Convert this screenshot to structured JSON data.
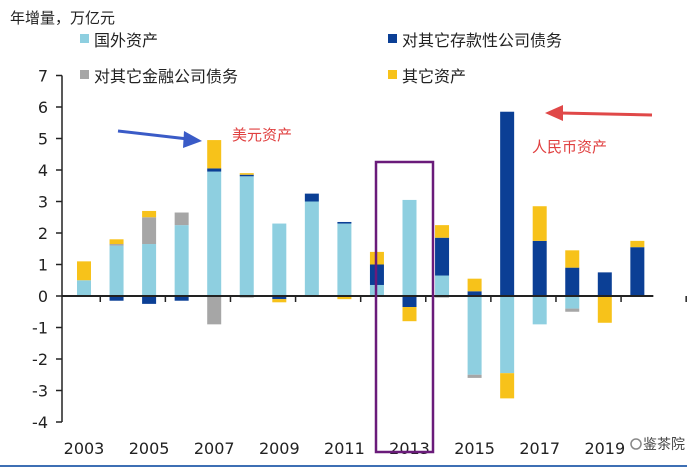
{
  "chart_data": {
    "type": "bar",
    "stacked": true,
    "ylabel": "年增量，万亿元",
    "ylim": [
      -4,
      7
    ],
    "yticks": [
      7,
      6,
      5,
      4,
      3,
      2,
      1,
      0,
      -1,
      -2,
      -3,
      -4
    ],
    "xtick_labels": [
      "2003",
      "2005",
      "2007",
      "2009",
      "2011",
      "2013",
      "2015",
      "2017",
      "2019"
    ],
    "categories": [
      "2003",
      "2004",
      "2005",
      "2006",
      "2007",
      "2008",
      "2009",
      "2010",
      "2011",
      "2012",
      "2013",
      "2014",
      "2015",
      "2016",
      "2017",
      "2018",
      "2019",
      "2020"
    ],
    "series": [
      {
        "name": "国外资产",
        "color": "#8ecfe0",
        "values": [
          0.5,
          1.6,
          1.65,
          2.25,
          3.95,
          3.8,
          2.3,
          3.0,
          2.3,
          0.35,
          3.05,
          0.65,
          -2.5,
          -2.45,
          -0.9,
          -0.4,
          0,
          0
        ]
      },
      {
        "name": "对其它存款性公司债务",
        "color": "#0b3f95",
        "values": [
          0,
          -0.15,
          -0.25,
          -0.15,
          0.1,
          0.05,
          -0.1,
          0.25,
          0.05,
          0.65,
          -0.35,
          1.2,
          0.15,
          5.85,
          1.75,
          0.9,
          0.75,
          1.55
        ]
      },
      {
        "name": "对其它金融公司债务",
        "color": "#a6a6a6",
        "values": [
          0,
          0.05,
          0.85,
          0.4,
          -0.9,
          -0.05,
          0,
          0,
          0,
          0,
          0,
          -0.05,
          -0.1,
          0,
          0,
          -0.1,
          0,
          0
        ]
      },
      {
        "name": "其它资产",
        "color": "#f7c21a",
        "values": [
          0.6,
          0.15,
          0.2,
          0,
          0.9,
          0.05,
          -0.1,
          0,
          -0.1,
          0.4,
          -0.45,
          0.4,
          0.4,
          -0.8,
          1.1,
          0.55,
          -0.85,
          0.2
        ]
      }
    ],
    "legend": "top",
    "annotations": [
      "美元资产",
      "人民币资产"
    ]
  },
  "watermark": "鉴茶院"
}
